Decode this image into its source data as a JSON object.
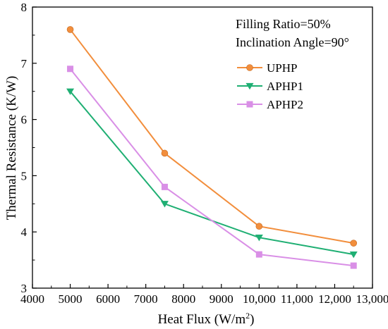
{
  "chart_data": {
    "type": "line",
    "xlabel": "Heat Flux (W/m",
    "xlabel_sup": "2",
    "xlabel_end": ")",
    "ylabel": "Thermal Resistance (K/W)",
    "xlim": [
      4000,
      13000
    ],
    "ylim": [
      3,
      8
    ],
    "x_ticks": [
      4000,
      5000,
      6000,
      7000,
      8000,
      9000,
      10000,
      11000,
      12000,
      13000
    ],
    "x_tick_labels": [
      "4000",
      "5000",
      "6000",
      "7000",
      "8000",
      "9000",
      "10,000",
      "11,000",
      "12,000",
      "13,000"
    ],
    "y_ticks": [
      3,
      4,
      5,
      6,
      7,
      8
    ],
    "y_tick_labels": [
      "3",
      "4",
      "5",
      "6",
      "7",
      "8"
    ],
    "grid": false,
    "legend_position": "top-right",
    "annotations": [
      "Filling Ratio=50%",
      "Inclination Angle=90°"
    ],
    "x": [
      5000,
      7500,
      10000,
      12500
    ],
    "series": [
      {
        "name": "UPHP",
        "color": "#F28E3C",
        "marker": "circle",
        "values": [
          7.6,
          5.4,
          4.1,
          3.8
        ]
      },
      {
        "name": "APHP1",
        "color": "#1FAF73",
        "marker": "triangle-down",
        "values": [
          6.5,
          4.5,
          3.9,
          3.6
        ]
      },
      {
        "name": "APHP2",
        "color": "#D98FE6",
        "marker": "square",
        "values": [
          6.9,
          4.8,
          3.6,
          3.4
        ]
      }
    ]
  }
}
